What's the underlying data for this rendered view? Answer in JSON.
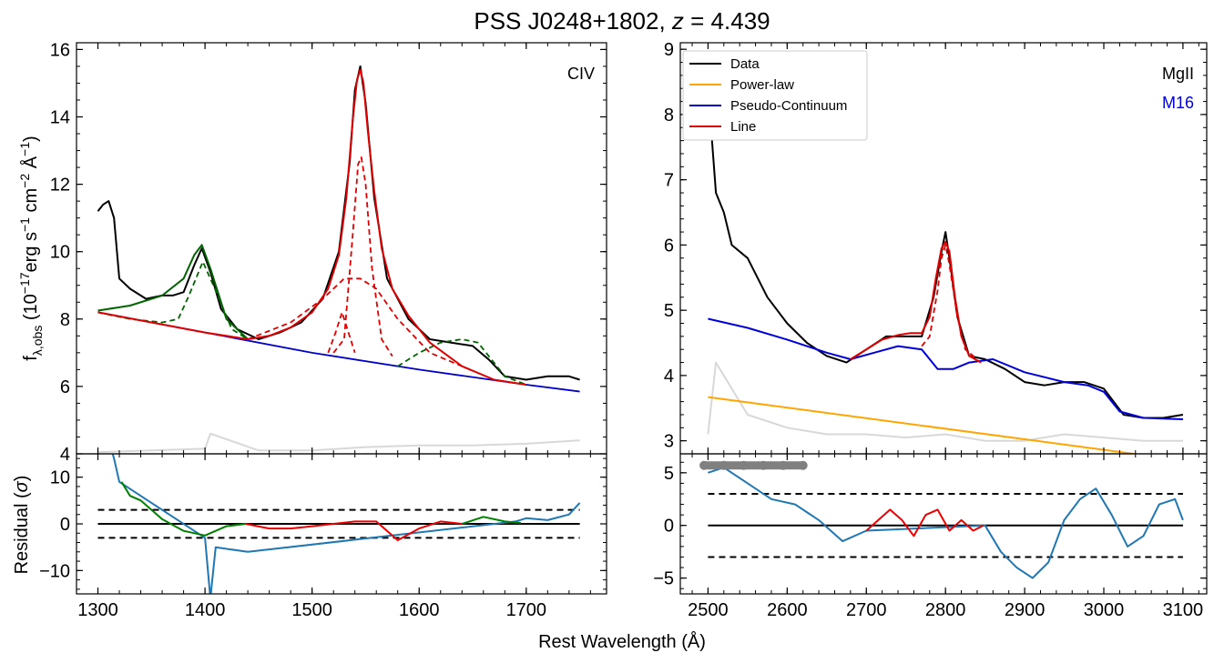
{
  "figure": {
    "title_main": "PSS J0248+1802, ",
    "title_z_symbol": "z",
    "title_z_value": " = 4.439",
    "xlabel": "Rest Wavelength (Å)"
  },
  "chart_data": [
    {
      "panel": "CIV spectrum",
      "type": "line",
      "annotation": "CIV",
      "ylabel": "f_λ,obs (10^-17 erg s^-1 cm^-2 Å^-1)",
      "xlim": [
        1280,
        1775
      ],
      "ylim": [
        4,
        16.2
      ],
      "xticks": [
        1300,
        1400,
        1500,
        1600,
        1700
      ],
      "yticks": [
        4,
        6,
        8,
        10,
        12,
        14,
        16
      ],
      "colors": {
        "data": "#000000",
        "continuum": "#0000cc",
        "line_total": "#e00000",
        "line_components": "#e00000",
        "other_lines": "#006400",
        "error": "#d8d8d8"
      },
      "series": [
        {
          "name": "Data",
          "x": [
            1300,
            1305,
            1310,
            1315,
            1320,
            1330,
            1345,
            1360,
            1370,
            1380,
            1390,
            1397,
            1405,
            1415,
            1430,
            1450,
            1470,
            1490,
            1510,
            1525,
            1535,
            1540,
            1545,
            1550,
            1558,
            1570,
            1590,
            1610,
            1630,
            1650,
            1665,
            1680,
            1700,
            1720,
            1740,
            1750
          ],
          "y": [
            11.2,
            11.4,
            11.5,
            11.0,
            9.2,
            8.9,
            8.6,
            8.7,
            8.7,
            8.8,
            9.6,
            10.1,
            9.4,
            8.3,
            7.7,
            7.4,
            7.6,
            7.9,
            8.6,
            10.0,
            12.6,
            14.8,
            15.5,
            14.4,
            11.6,
            9.2,
            8.0,
            7.4,
            7.3,
            7.2,
            6.8,
            6.3,
            6.2,
            6.3,
            6.3,
            6.2
          ]
        },
        {
          "name": "Continuum",
          "x": [
            1300,
            1400,
            1500,
            1600,
            1700,
            1750
          ],
          "y": [
            8.2,
            7.6,
            7.0,
            6.5,
            6.05,
            5.85
          ]
        },
        {
          "name": "Line total",
          "x": [
            1300,
            1400,
            1440,
            1460,
            1480,
            1500,
            1515,
            1525,
            1532,
            1538,
            1542,
            1545,
            1548,
            1552,
            1558,
            1565,
            1575,
            1590,
            1610,
            1640,
            1670,
            1700
          ],
          "y": [
            8.2,
            7.6,
            7.4,
            7.5,
            7.75,
            8.2,
            8.9,
            9.9,
            11.6,
            13.9,
            15.1,
            15.4,
            15.0,
            13.6,
            11.8,
            10.1,
            8.9,
            8.1,
            7.3,
            6.6,
            6.2,
            6.05
          ]
        },
        {
          "name": "Broad CIV",
          "x": [
            1440,
            1480,
            1510,
            1530,
            1545,
            1560,
            1580,
            1610,
            1640
          ],
          "y": [
            7.4,
            7.9,
            8.6,
            9.2,
            9.2,
            8.9,
            8.0,
            7.0,
            6.6
          ]
        },
        {
          "name": "Narrow CIV",
          "x": [
            1520,
            1530,
            1538,
            1543,
            1546,
            1550,
            1556,
            1565,
            1575
          ],
          "y": [
            7.0,
            7.4,
            10.5,
            12.6,
            12.8,
            12.0,
            9.5,
            7.4,
            6.9
          ]
        },
        {
          "name": "Weak component",
          "x": [
            1515,
            1522,
            1528,
            1534,
            1540
          ],
          "y": [
            7.0,
            7.6,
            8.2,
            7.6,
            7.0
          ]
        },
        {
          "name": "SiIV total",
          "x": [
            1300,
            1330,
            1360,
            1380,
            1390,
            1397,
            1405,
            1420,
            1440
          ],
          "y": [
            8.25,
            8.4,
            8.7,
            9.2,
            9.9,
            10.2,
            9.5,
            8.0,
            7.4
          ]
        },
        {
          "name": "Other component",
          "x": [
            1300,
            1330,
            1360,
            1375,
            1385,
            1398,
            1412,
            1425,
            1440
          ],
          "y": [
            8.2,
            8.0,
            7.9,
            8.0,
            8.7,
            9.7,
            8.7,
            7.7,
            7.4
          ]
        },
        {
          "name": "Red bump",
          "x": [
            1580,
            1600,
            1620,
            1640,
            1655,
            1665,
            1680,
            1700
          ],
          "y": [
            6.6,
            7.0,
            7.3,
            7.4,
            7.3,
            6.9,
            6.3,
            6.05
          ]
        },
        {
          "name": "Error",
          "x": [
            1300,
            1350,
            1400,
            1405,
            1450,
            1500,
            1550,
            1600,
            1650,
            1700,
            1750
          ],
          "y": [
            4.05,
            4.1,
            4.15,
            4.6,
            4.1,
            4.1,
            4.2,
            4.25,
            4.25,
            4.3,
            4.4
          ]
        }
      ]
    },
    {
      "panel": "MgII spectrum",
      "type": "line",
      "annotation_1": "MgII",
      "annotation_2": "M16",
      "xlim": [
        2465,
        3130
      ],
      "ylim": [
        2.8,
        9.1
      ],
      "xticks": [
        2500,
        2600,
        2700,
        2800,
        2900,
        3000,
        3100
      ],
      "yticks": [
        3,
        4,
        5,
        6,
        7,
        8,
        9
      ],
      "colors": {
        "data": "#000000",
        "power_law": "#ffa500",
        "pseudo_continuum": "#0000dd",
        "line": "#e00000",
        "error": "#d8d8d8",
        "fe_marker": "#22aa22"
      },
      "legend": {
        "position": "top-left",
        "entries": [
          {
            "label": "Data",
            "color": "#000000"
          },
          {
            "label": "Power-law",
            "color": "#ffa500"
          },
          {
            "label": "Pseudo-Continuum",
            "color": "#0000dd"
          },
          {
            "label": "Line",
            "color": "#e00000"
          }
        ]
      },
      "series": [
        {
          "name": "Data",
          "x": [
            2500,
            2505,
            2510,
            2520,
            2530,
            2550,
            2575,
            2600,
            2625,
            2650,
            2675,
            2700,
            2725,
            2750,
            2770,
            2785,
            2795,
            2800,
            2805,
            2815,
            2830,
            2850,
            2875,
            2900,
            2925,
            2950,
            2975,
            3000,
            3025,
            3050,
            3075,
            3100
          ],
          "y": [
            7.8,
            7.6,
            6.8,
            6.5,
            6.0,
            5.8,
            5.2,
            4.8,
            4.5,
            4.3,
            4.2,
            4.4,
            4.6,
            4.6,
            4.6,
            5.2,
            5.9,
            6.2,
            5.8,
            4.9,
            4.3,
            4.25,
            4.1,
            3.9,
            3.85,
            3.9,
            3.9,
            3.8,
            3.4,
            3.35,
            3.35,
            3.4
          ]
        },
        {
          "name": "Power-law",
          "x": [
            2500,
            3100
          ],
          "y": [
            3.67,
            2.7
          ]
        },
        {
          "name": "Pseudo-Continuum",
          "x": [
            2500,
            2550,
            2600,
            2650,
            2680,
            2710,
            2740,
            2770,
            2790,
            2810,
            2830,
            2860,
            2900,
            2950,
            2980,
            3000,
            3020,
            3050,
            3100
          ],
          "y": [
            4.87,
            4.73,
            4.55,
            4.35,
            4.25,
            4.35,
            4.45,
            4.4,
            4.1,
            4.1,
            4.2,
            4.25,
            4.05,
            3.9,
            3.85,
            3.75,
            3.45,
            3.35,
            3.33
          ]
        },
        {
          "name": "Line",
          "x": [
            2680,
            2700,
            2720,
            2740,
            2755,
            2770,
            2780,
            2788,
            2795,
            2800,
            2805,
            2812,
            2820,
            2830,
            2845
          ],
          "y": [
            4.25,
            4.4,
            4.55,
            4.62,
            4.65,
            4.65,
            4.9,
            5.5,
            5.95,
            6.05,
            5.9,
            5.2,
            4.6,
            4.3,
            4.2
          ]
        },
        {
          "name": "Line components",
          "x": [
            2770,
            2780,
            2790,
            2795,
            2800,
            2805,
            2815,
            2825,
            2840
          ],
          "y": [
            4.45,
            4.6,
            5.3,
            5.8,
            6.0,
            5.7,
            4.9,
            4.4,
            4.25
          ]
        },
        {
          "name": "Error",
          "x": [
            2500,
            2510,
            2550,
            2600,
            2650,
            2700,
            2750,
            2800,
            2850,
            2900,
            2950,
            3000,
            3050,
            3100
          ],
          "y": [
            3.1,
            4.2,
            3.4,
            3.2,
            3.1,
            3.1,
            3.05,
            3.1,
            3.0,
            3.0,
            3.1,
            3.05,
            3.0,
            3.0
          ]
        }
      ]
    },
    {
      "panel": "CIV residual",
      "type": "line",
      "ylabel_main": "Residual (",
      "ylabel_symbol": "σ",
      "ylabel_close": ")",
      "xlim": [
        1280,
        1775
      ],
      "ylim": [
        -15,
        15
      ],
      "xticks": [
        1300,
        1400,
        1500,
        1600,
        1700
      ],
      "yticks": [
        -10,
        0,
        10
      ],
      "xtick_labels": [
        "1300",
        "1400",
        "1500",
        "1600",
        "1700"
      ],
      "reference_lines": {
        "zero": 0,
        "upper": 3,
        "lower": -3,
        "xrange": [
          1300,
          1750
        ]
      },
      "series": [
        {
          "name": "Residual (all)",
          "color": "#1f77b4",
          "x": [
            1310,
            1315,
            1320,
            1400,
            1405,
            1410,
            1440,
            1690,
            1700,
            1720,
            1740,
            1750
          ],
          "y": [
            18,
            14,
            9,
            -3,
            -16,
            -5,
            -6,
            0.5,
            1.2,
            0.8,
            2.0,
            4.5
          ]
        },
        {
          "name": "Residual (SiIV region)",
          "color": "#008000",
          "x": [
            1322,
            1330,
            1340,
            1360,
            1380,
            1400,
            1420,
            1438
          ],
          "y": [
            9,
            6,
            5,
            1.0,
            -1.5,
            -2.5,
            -0.5,
            0
          ]
        },
        {
          "name": "Residual (CIV region)",
          "color": "#ee0000",
          "x": [
            1438,
            1460,
            1480,
            1500,
            1520,
            1540,
            1560,
            1580,
            1600,
            1620,
            1640
          ],
          "y": [
            0,
            -1,
            -1,
            -0.5,
            0,
            0.5,
            0.5,
            -3.5,
            -1,
            0.5,
            0
          ]
        },
        {
          "name": "Residual (red region)",
          "color": "#008000",
          "x": [
            1640,
            1660,
            1680,
            1695
          ],
          "y": [
            0,
            1.5,
            0.5,
            0.2
          ]
        }
      ]
    },
    {
      "panel": "MgII residual",
      "type": "line",
      "xlim": [
        2465,
        3130
      ],
      "ylim": [
        -6.5,
        6.8
      ],
      "xticks": [
        2500,
        2600,
        2700,
        2800,
        2900,
        3000,
        3100
      ],
      "yticks": [
        -5,
        0,
        5
      ],
      "xtick_labels": [
        "2500",
        "2600",
        "2700",
        "2800",
        "2900",
        "3000",
        "3100"
      ],
      "reference_lines": {
        "zero": 0,
        "upper": 3,
        "lower": -3,
        "xrange": [
          2500,
          3100
        ]
      },
      "series": [
        {
          "name": "Residual",
          "color": "#1f77b4",
          "x": [
            2500,
            2520,
            2550,
            2580,
            2610,
            2640,
            2670,
            2700,
            2850,
            2870,
            2890,
            2910,
            2930,
            2950,
            2970,
            2990,
            3010,
            3030,
            3050,
            3070,
            3090,
            3100
          ],
          "y": [
            5.0,
            5.5,
            4.0,
            2.5,
            2.0,
            0.5,
            -1.5,
            -0.5,
            0,
            -2.5,
            -4,
            -5,
            -3.5,
            0.5,
            2.5,
            3.5,
            1.0,
            -2.0,
            -1.0,
            2.0,
            2.5,
            0.5
          ]
        },
        {
          "name": "Residual (line region)",
          "color": "#ee0000",
          "x": [
            2700,
            2715,
            2730,
            2745,
            2760,
            2775,
            2790,
            2805,
            2820,
            2835,
            2848
          ],
          "y": [
            -0.5,
            0.5,
            1.5,
            0.5,
            -1.0,
            1.0,
            1.5,
            -0.5,
            0.5,
            -0.5,
            0
          ]
        },
        {
          "name": "Masked points",
          "color": "#808080",
          "x": [
            2495,
            2520,
            2545,
            2570,
            2595,
            2620
          ],
          "y": [
            5.7,
            5.7,
            5.7,
            5.7,
            5.7,
            5.7
          ]
        }
      ]
    }
  ]
}
